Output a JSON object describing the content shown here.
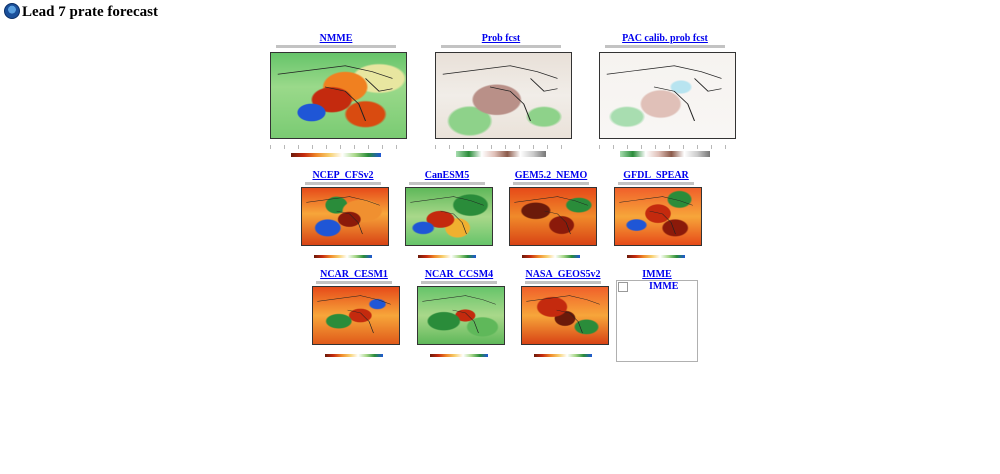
{
  "page": {
    "title": "Lead 7 prate forecast",
    "logo_icon": "noaa-logo-icon"
  },
  "row1": [
    {
      "label": "NMME",
      "plot": "nmme"
    },
    {
      "label": "Prob fcst",
      "plot": "prob"
    },
    {
      "label": "PAC calib. prob fcst",
      "plot": "pac"
    }
  ],
  "row2": [
    {
      "label": "NCEP_CFSv2",
      "plot": "m1"
    },
    {
      "label": "CanESM5",
      "plot": "m2"
    },
    {
      "label": "GEM5.2_NEMO",
      "plot": "m3"
    },
    {
      "label": "GFDL_SPEAR",
      "plot": "m4"
    }
  ],
  "row3": [
    {
      "label": "NCAR_CESM1",
      "plot": "m5"
    },
    {
      "label": "NCAR_CCSM4",
      "plot": "m6"
    },
    {
      "label": "NASA_GEOS5v2",
      "plot": "m7"
    },
    {
      "label": "IMME",
      "broken_image_alt": "IMME"
    }
  ],
  "colors": {
    "link": "#0000ee",
    "dry_dark": "#6b1a0a",
    "dry": "#c42a0e",
    "wet": "#2a8c3a",
    "very_wet": "#1f56d6"
  }
}
